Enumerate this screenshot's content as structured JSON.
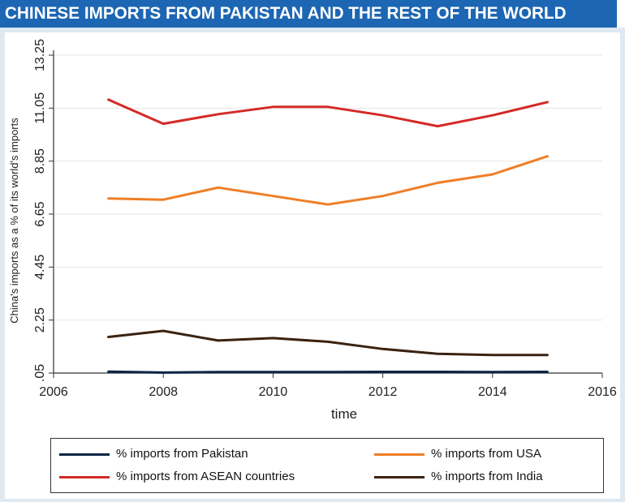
{
  "banner": {
    "title": "CHINESE IMPORTS FROM PAKISTAN AND THE REST OF THE WORLD"
  },
  "chart_data": {
    "type": "line",
    "title": "",
    "xlabel": "time",
    "ylabel": "China's imports as a % of its world's imports",
    "xlim": [
      2006,
      2016
    ],
    "ylim": [
      0.05,
      13.25
    ],
    "x_ticks": [
      "2006",
      "2008",
      "2010",
      "2012",
      "2014",
      "2016"
    ],
    "y_ticks": [
      ".05",
      "2.25",
      "4.45",
      "6.65",
      "8.85",
      "11.05",
      "13.25"
    ],
    "grid": true,
    "legend_position": "bottom",
    "x": [
      2007,
      2008,
      2009,
      2010,
      2011,
      2012,
      2013,
      2014,
      2015
    ],
    "series": [
      {
        "name": "% imports from Pakistan",
        "color": "#0b2545",
        "values": [
          0.11,
          0.07,
          0.09,
          0.09,
          0.09,
          0.1,
          0.1,
          0.09,
          0.1
        ]
      },
      {
        "name": "% imports from USA",
        "color": "#f07e26",
        "values": [
          7.3,
          7.25,
          7.75,
          7.4,
          7.05,
          7.4,
          7.95,
          8.3,
          9.05
        ]
      },
      {
        "name": "% imports from ASEAN countries",
        "color": "#d42a27",
        "values": [
          11.4,
          10.4,
          10.8,
          11.1,
          11.1,
          10.75,
          10.3,
          10.75,
          11.3
        ]
      },
      {
        "name": "% imports from India",
        "color": "#3a2210",
        "values": [
          1.55,
          1.8,
          1.4,
          1.5,
          1.35,
          1.05,
          0.85,
          0.8,
          0.8
        ]
      }
    ]
  }
}
